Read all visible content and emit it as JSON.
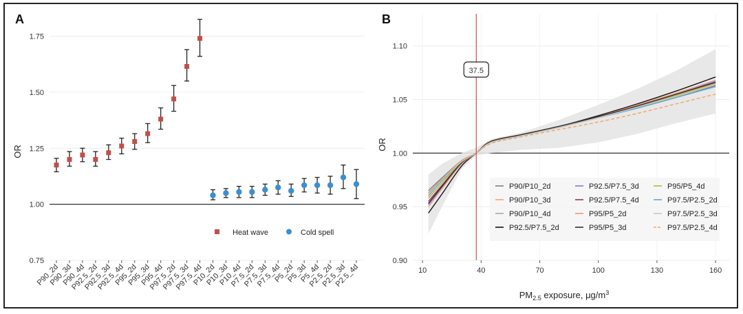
{
  "chart_data": [
    {
      "panel": "A",
      "type": "scatter",
      "ylabel": "OR",
      "ylim": [
        0.75,
        1.85
      ],
      "yticks": [
        "0.75",
        "1.00",
        "1.25",
        "1.50",
        "1.75"
      ],
      "reference_line": 1.0,
      "categories": [
        "P90_2d",
        "P90_3d",
        "P90_4d",
        "P92.5_2d",
        "P92.5_3d",
        "P92.5_4d",
        "P95_2d",
        "P95_3d",
        "P95_4d",
        "P97.5_2d",
        "P97.5_3d",
        "P97.5_4d",
        "P10_2d",
        "P10_3d",
        "P10_4d",
        "P7.5_2d",
        "P7.5_3d",
        "P7.5_4d",
        "P5_2d",
        "P5_3d",
        "P5_4d",
        "P2.5_2d",
        "P2.5_3d",
        "P2.5_4d"
      ],
      "series": [
        {
          "name": "Heat wave",
          "color": "#c0504d",
          "marker": "square",
          "categories": [
            "P90_2d",
            "P90_3d",
            "P90_4d",
            "P92.5_2d",
            "P92.5_3d",
            "P92.5_4d",
            "P95_2d",
            "P95_3d",
            "P95_4d",
            "P97.5_2d",
            "P97.5_3d",
            "P97.5_4d"
          ],
          "values": [
            1.175,
            1.2,
            1.22,
            1.2,
            1.23,
            1.26,
            1.28,
            1.315,
            1.38,
            1.47,
            1.615,
            1.74
          ],
          "lower": [
            1.145,
            1.17,
            1.19,
            1.17,
            1.2,
            1.225,
            1.245,
            1.275,
            1.335,
            1.415,
            1.55,
            1.66
          ],
          "upper": [
            1.205,
            1.235,
            1.25,
            1.235,
            1.265,
            1.295,
            1.315,
            1.36,
            1.43,
            1.53,
            1.69,
            1.825
          ]
        },
        {
          "name": "Cold spell",
          "color": "#3b8fd0",
          "marker": "circle",
          "categories": [
            "P10_2d",
            "P10_3d",
            "P10_4d",
            "P7.5_2d",
            "P7.5_3d",
            "P7.5_4d",
            "P5_2d",
            "P5_3d",
            "P5_4d",
            "P2.5_2d",
            "P2.5_3d",
            "P2.5_4d"
          ],
          "values": [
            1.04,
            1.05,
            1.055,
            1.055,
            1.065,
            1.075,
            1.06,
            1.085,
            1.085,
            1.085,
            1.12,
            1.09
          ],
          "lower": [
            1.02,
            1.03,
            1.03,
            1.03,
            1.04,
            1.045,
            1.035,
            1.055,
            1.05,
            1.045,
            1.07,
            1.025
          ],
          "upper": [
            1.065,
            1.07,
            1.08,
            1.08,
            1.09,
            1.105,
            1.09,
            1.115,
            1.12,
            1.125,
            1.175,
            1.155
          ]
        }
      ],
      "legend": "bottom-right"
    },
    {
      "panel": "B",
      "type": "line",
      "xlabel_main": "PM",
      "xlabel_sub": "2.5",
      "xlabel_rest": " exposure, μg/m",
      "xlabel_sup": "3",
      "ylabel": "OR",
      "xlim": [
        5,
        167
      ],
      "ylim": [
        0.9,
        1.13
      ],
      "xticks": [
        "10",
        "40",
        "70",
        "100",
        "130",
        "160"
      ],
      "yticks": [
        "0.90",
        "0.95",
        "1.00",
        "1.05",
        "1.10"
      ],
      "reference_line": 1.0,
      "vline": 37.5,
      "vline_label": "37.5",
      "band_upper": [
        [
          13,
          0.98
        ],
        [
          20,
          0.99
        ],
        [
          30,
          1.0
        ],
        [
          37.5,
          1.005
        ],
        [
          45,
          1.013
        ],
        [
          60,
          1.019
        ],
        [
          80,
          1.031
        ],
        [
          100,
          1.045
        ],
        [
          120,
          1.06
        ],
        [
          140,
          1.077
        ],
        [
          160,
          1.097
        ]
      ],
      "band_lower": [
        [
          13,
          0.925
        ],
        [
          20,
          0.95
        ],
        [
          30,
          0.985
        ],
        [
          37.5,
          0.998
        ],
        [
          45,
          1.0
        ],
        [
          60,
          1.003
        ],
        [
          80,
          1.005
        ],
        [
          100,
          1.01
        ],
        [
          120,
          1.018
        ],
        [
          140,
          1.028
        ],
        [
          160,
          1.037
        ]
      ],
      "series": [
        {
          "name": "P90/P10_2d",
          "color": "#7f7f7f",
          "dash": "solid",
          "points": [
            [
              13,
              0.965
            ],
            [
              20,
              0.977
            ],
            [
              30,
              0.993
            ],
            [
              37.5,
              1.0
            ],
            [
              45,
              1.01
            ],
            [
              60,
              1.016
            ],
            [
              80,
              1.024
            ],
            [
              100,
              1.033
            ],
            [
              120,
              1.042
            ],
            [
              140,
              1.052
            ],
            [
              160,
              1.063
            ]
          ]
        },
        {
          "name": "P90/P10_3d",
          "color": "#f4a460",
          "dash": "solid",
          "points": [
            [
              13,
              0.962
            ],
            [
              20,
              0.975
            ],
            [
              30,
              0.992
            ],
            [
              37.5,
              1.0
            ],
            [
              45,
              1.01
            ],
            [
              60,
              1.016
            ],
            [
              80,
              1.024
            ],
            [
              100,
              1.033
            ],
            [
              120,
              1.043
            ],
            [
              140,
              1.053
            ],
            [
              160,
              1.064
            ]
          ]
        },
        {
          "name": "P90/P10_4d",
          "color": "#a9a9a9",
          "dash": "solid",
          "points": [
            [
              13,
              0.963
            ],
            [
              20,
              0.976
            ],
            [
              30,
              0.993
            ],
            [
              37.5,
              1.0
            ],
            [
              45,
              1.01
            ],
            [
              60,
              1.016
            ],
            [
              80,
              1.024
            ],
            [
              100,
              1.033
            ],
            [
              120,
              1.043
            ],
            [
              140,
              1.053
            ],
            [
              160,
              1.064
            ]
          ]
        },
        {
          "name": "P92.5/P7.5_2d",
          "color": "#111111",
          "dash": "solid",
          "points": [
            [
              13,
              0.944
            ],
            [
              20,
              0.962
            ],
            [
              30,
              0.988
            ],
            [
              37.5,
              1.0
            ],
            [
              45,
              1.011
            ],
            [
              60,
              1.017
            ],
            [
              80,
              1.025
            ],
            [
              100,
              1.035
            ],
            [
              120,
              1.046
            ],
            [
              140,
              1.058
            ],
            [
              160,
              1.071
            ]
          ]
        },
        {
          "name": "P92.5/P7.5_3d",
          "color": "#9370db",
          "dash": "solid",
          "points": [
            [
              13,
              0.952
            ],
            [
              20,
              0.968
            ],
            [
              30,
              0.99
            ],
            [
              37.5,
              1.0
            ],
            [
              45,
              1.011
            ],
            [
              60,
              1.017
            ],
            [
              80,
              1.025
            ],
            [
              100,
              1.034
            ],
            [
              120,
              1.044
            ],
            [
              140,
              1.055
            ],
            [
              160,
              1.067
            ]
          ]
        },
        {
          "name": "P92.5/P7.5_4d",
          "color": "#8b3a4a",
          "dash": "solid",
          "points": [
            [
              13,
              0.955
            ],
            [
              20,
              0.97
            ],
            [
              30,
              0.991
            ],
            [
              37.5,
              1.0
            ],
            [
              45,
              1.011
            ],
            [
              60,
              1.017
            ],
            [
              80,
              1.025
            ],
            [
              100,
              1.034
            ],
            [
              120,
              1.044
            ],
            [
              140,
              1.055
            ],
            [
              160,
              1.066
            ]
          ]
        },
        {
          "name": "P95/P5_2d",
          "color": "#e9967a",
          "dash": "solid",
          "points": [
            [
              13,
              0.95
            ],
            [
              20,
              0.967
            ],
            [
              30,
              0.99
            ],
            [
              37.5,
              1.0
            ],
            [
              45,
              1.011
            ],
            [
              60,
              1.017
            ],
            [
              80,
              1.025
            ],
            [
              100,
              1.034
            ],
            [
              120,
              1.045
            ],
            [
              140,
              1.056
            ],
            [
              160,
              1.068
            ]
          ]
        },
        {
          "name": "P95/P5_3d",
          "color": "#2f2f2f",
          "dash": "solid",
          "points": [
            [
              13,
              0.953
            ],
            [
              20,
              0.969
            ],
            [
              30,
              0.991
            ],
            [
              37.5,
              1.0
            ],
            [
              45,
              1.011
            ],
            [
              60,
              1.017
            ],
            [
              80,
              1.025
            ],
            [
              100,
              1.034
            ],
            [
              120,
              1.044
            ],
            [
              140,
              1.055
            ],
            [
              160,
              1.066
            ]
          ]
        },
        {
          "name": "P95/P5_4d",
          "color": "#b8b838",
          "dash": "solid",
          "points": [
            [
              13,
              0.958
            ],
            [
              20,
              0.972
            ],
            [
              30,
              0.992
            ],
            [
              37.5,
              1.0
            ],
            [
              45,
              1.01
            ],
            [
              60,
              1.016
            ],
            [
              80,
              1.024
            ],
            [
              100,
              1.033
            ],
            [
              120,
              1.043
            ],
            [
              140,
              1.054
            ],
            [
              160,
              1.065
            ]
          ]
        },
        {
          "name": "P97.5/P2.5_2d",
          "color": "#5fa8d3",
          "dash": "solid",
          "points": [
            [
              13,
              0.96
            ],
            [
              20,
              0.974
            ],
            [
              30,
              0.992
            ],
            [
              37.5,
              1.0
            ],
            [
              45,
              1.01
            ],
            [
              60,
              1.016
            ],
            [
              80,
              1.024
            ],
            [
              100,
              1.033
            ],
            [
              120,
              1.042
            ],
            [
              140,
              1.052
            ],
            [
              160,
              1.062
            ]
          ]
        },
        {
          "name": "P97.5/P2.5_3d",
          "color": "#c8c8c8",
          "dash": "solid",
          "points": [
            [
              13,
              0.961
            ],
            [
              20,
              0.975
            ],
            [
              30,
              0.992
            ],
            [
              37.5,
              1.0
            ],
            [
              45,
              1.01
            ],
            [
              60,
              1.016
            ],
            [
              80,
              1.024
            ],
            [
              100,
              1.033
            ],
            [
              120,
              1.043
            ],
            [
              140,
              1.053
            ],
            [
              160,
              1.064
            ]
          ]
        },
        {
          "name": "P97.5/P2.5_4d",
          "color": "#f4a460",
          "dash": "dashed",
          "points": [
            [
              13,
              0.962
            ],
            [
              20,
              0.975
            ],
            [
              30,
              0.993
            ],
            [
              37.5,
              1.0
            ],
            [
              45,
              1.009
            ],
            [
              60,
              1.015
            ],
            [
              80,
              1.022
            ],
            [
              100,
              1.029
            ],
            [
              120,
              1.037
            ],
            [
              140,
              1.046
            ],
            [
              160,
              1.055
            ]
          ]
        }
      ],
      "legend": "bottom-right, 3 columns"
    }
  ]
}
